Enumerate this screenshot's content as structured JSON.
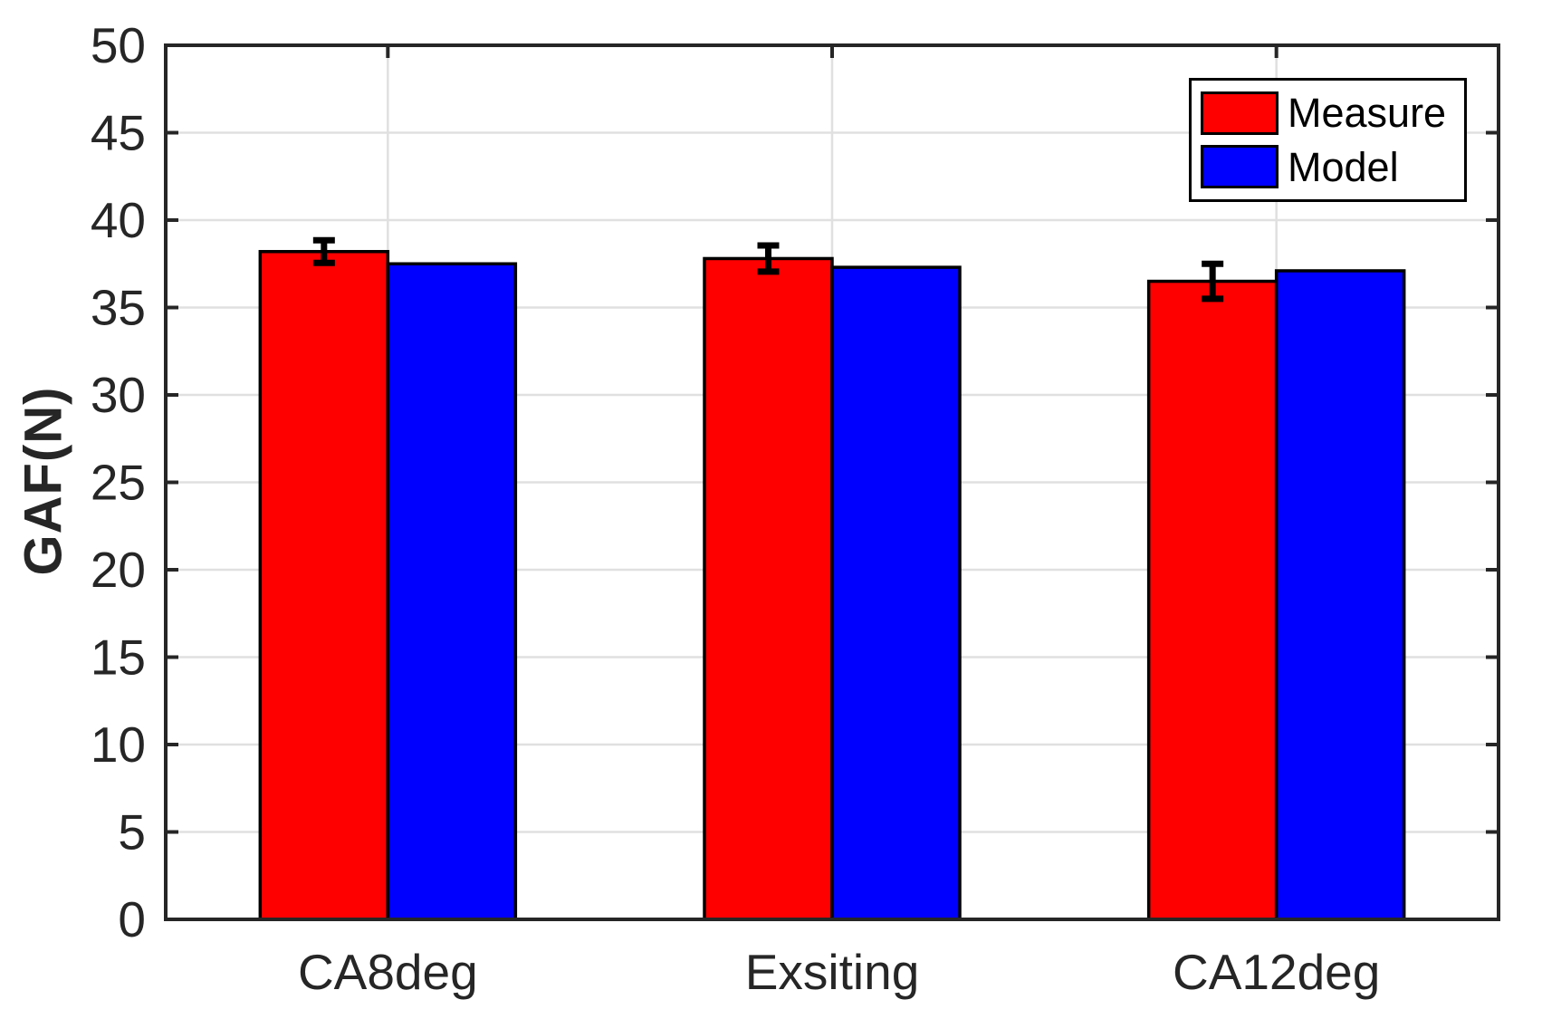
{
  "chart_data": {
    "type": "bar",
    "title": "",
    "ylabel": "GAF(N)",
    "xlabel": "",
    "categories": [
      "CA8deg",
      "Exsiting",
      "CA12deg"
    ],
    "series": [
      {
        "name": "Measure",
        "color": "#ff0000",
        "values": [
          38.2,
          37.8,
          36.5
        ],
        "errors": [
          0.65,
          0.75,
          1.0
        ]
      },
      {
        "name": "Model",
        "color": "#0000ff",
        "values": [
          37.5,
          37.3,
          37.1
        ]
      }
    ],
    "ylim": [
      0,
      50
    ],
    "yticks": [
      0,
      5,
      10,
      15,
      20,
      25,
      30,
      35,
      40,
      45,
      50
    ],
    "grid": "on",
    "legend": {
      "position": "top-right",
      "entries": [
        "Measure",
        "Model"
      ]
    }
  },
  "style_colors": {
    "axis": "#262626",
    "tick_label": "#262626",
    "grid": "#e0e0e0",
    "bar_edge": "#000000",
    "error_bar": "#000000",
    "background": "#ffffff"
  }
}
